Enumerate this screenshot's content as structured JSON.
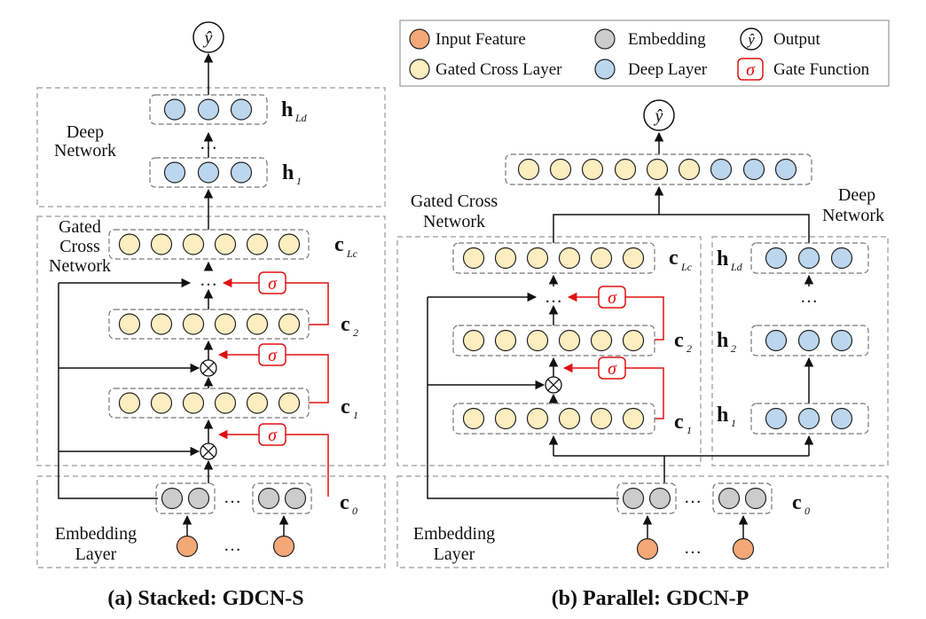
{
  "colors": {
    "input_feature": "#f4a878",
    "embedding": "#cccccc",
    "gated_cross": "#fdeec0",
    "deep": "#bcd6ee",
    "gate": "#e01010",
    "box_border": "#9a9a9a",
    "arrow": "#111111"
  },
  "legend": {
    "input_feature": "Input Feature",
    "embedding": "Embedding",
    "output": "Output",
    "gated_cross_layer": "Gated Cross Layer",
    "deep_layer": "Deep Layer",
    "gate_function": "Gate Function"
  },
  "symbols": {
    "sigma": "σ",
    "y_hat": "ŷ",
    "dots": "…",
    "vdots": "⋮",
    "otimes": "⊗"
  },
  "panel_a": {
    "caption": "(a) Stacked: GDCN-S",
    "deep_network_label": [
      "Deep",
      "Network"
    ],
    "gated_cross_label": [
      "Gated",
      "Cross",
      "Network"
    ],
    "embedding_label": [
      "Embedding",
      "Layer"
    ],
    "h_Ld": {
      "base": "h",
      "sub": "Ld"
    },
    "h_1": {
      "base": "h",
      "sub": "1"
    },
    "c_Lc": {
      "base": "c",
      "sub": "Lc"
    },
    "c_2": {
      "base": "c",
      "sub": "2"
    },
    "c_1": {
      "base": "c",
      "sub": "1"
    },
    "c_0": {
      "base": "c",
      "sub": "0"
    }
  },
  "panel_b": {
    "caption": "(b) Parallel: GDCN-P",
    "gated_cross_label": [
      "Gated Cross",
      "Network"
    ],
    "deep_network_label": [
      "Deep",
      "Network"
    ],
    "embedding_label": [
      "Embedding",
      "Layer"
    ],
    "c_Lc": {
      "base": "c",
      "sub": "Lc"
    },
    "c_2": {
      "base": "c",
      "sub": "2"
    },
    "c_1": {
      "base": "c",
      "sub": "1"
    },
    "c_0": {
      "base": "c",
      "sub": "0"
    },
    "h_Ld": {
      "base": "h",
      "sub": "Ld"
    },
    "h_2": {
      "base": "h",
      "sub": "2"
    },
    "h_1": {
      "base": "h",
      "sub": "1"
    }
  }
}
